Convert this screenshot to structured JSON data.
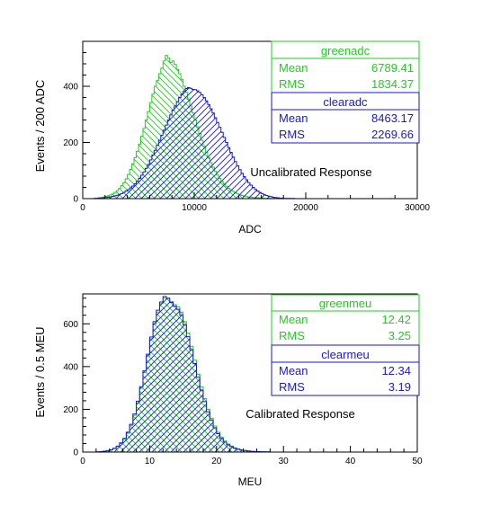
{
  "chart_data": [
    {
      "type": "histogram",
      "xlabel": "ADC",
      "ylabel": "Events / 200 ADC",
      "annotation": "Uncalibrated Response",
      "xlim": [
        0,
        30000
      ],
      "ylim": [
        0,
        560
      ],
      "x_ticks": [
        0,
        10000,
        20000,
        30000
      ],
      "y_ticks": [
        0,
        200,
        400
      ],
      "grid": false,
      "bin_width": 200,
      "series": [
        {
          "name": "greenadc",
          "color": "#22cc22",
          "hatch": "diagonal-down",
          "x_start": 1000,
          "values": [
            1,
            2,
            3,
            4,
            6,
            8,
            10,
            13,
            17,
            22,
            28,
            36,
            46,
            57,
            70,
            86,
            104,
            124,
            146,
            169,
            194,
            222,
            250,
            280,
            310,
            342,
            372,
            400,
            420,
            445,
            465,
            490,
            510,
            500,
            485,
            490,
            478,
            460,
            445,
            425,
            400,
            378,
            355,
            330,
            305,
            280,
            256,
            232,
            208,
            186,
            165,
            146,
            128,
            112,
            97,
            84,
            72,
            61,
            52,
            44,
            37,
            31,
            26,
            21,
            17,
            14,
            11,
            9,
            7,
            6,
            5,
            4,
            3,
            3,
            2,
            2,
            1,
            1,
            1,
            1
          ],
          "stats": {
            "Mean": "6789.41",
            "RMS": "1834.37"
          }
        },
        {
          "name": "clearadc",
          "color": "#1a1acc",
          "hatch": "diagonal-up",
          "x_start": 1000,
          "values": [
            1,
            1,
            2,
            2,
            3,
            4,
            5,
            6,
            8,
            10,
            12,
            15,
            18,
            22,
            27,
            32,
            38,
            45,
            53,
            62,
            72,
            83,
            95,
            108,
            122,
            138,
            155,
            172,
            190,
            208,
            226,
            244,
            262,
            280,
            298,
            315,
            330,
            345,
            360,
            372,
            383,
            392,
            395,
            393,
            389,
            388,
            384,
            378,
            370,
            360,
            348,
            335,
            320,
            305,
            288,
            271,
            254,
            236,
            218,
            200,
            182,
            165,
            148,
            132,
            117,
            103,
            90,
            78,
            67,
            57,
            48,
            40,
            33,
            27,
            22,
            18,
            14,
            11,
            9,
            7,
            5,
            4,
            3,
            2,
            2,
            1,
            1,
            1,
            1,
            1
          ],
          "stats": {
            "Mean": "8463.17",
            "RMS": "2269.66"
          }
        }
      ]
    },
    {
      "type": "histogram",
      "xlabel": "MEU",
      "ylabel": "Events / 0.5 MEU",
      "annotation": "Calibrated Response",
      "xlim": [
        0,
        50
      ],
      "ylim": [
        0,
        740
      ],
      "x_ticks": [
        0,
        10,
        20,
        30,
        40,
        50
      ],
      "y_ticks": [
        0,
        200,
        400,
        600
      ],
      "grid": false,
      "bin_width": 0.5,
      "series": [
        {
          "name": "greenmeu",
          "color": "#22cc22",
          "hatch": "diagonal-down",
          "x_start": 2,
          "values": [
            1,
            2,
            4,
            6,
            10,
            16,
            26,
            40,
            60,
            88,
            125,
            172,
            230,
            298,
            372,
            450,
            530,
            600,
            655,
            695,
            720,
            718,
            705,
            690,
            680,
            655,
            610,
            556,
            495,
            430,
            365,
            305,
            250,
            200,
            158,
            122,
            93,
            70,
            52,
            38,
            28,
            20,
            15,
            11,
            8,
            6,
            4,
            3,
            2,
            2,
            1,
            1
          ],
          "stats": {
            "Mean": "12.42",
            "RMS": "3.25"
          }
        },
        {
          "name": "clearmeu",
          "color": "#1a1acc",
          "hatch": "diagonal-up",
          "x_start": 2,
          "values": [
            1,
            2,
            4,
            7,
            11,
            18,
            28,
            43,
            64,
            93,
            130,
            178,
            238,
            306,
            380,
            458,
            538,
            610,
            664,
            702,
            728,
            720,
            700,
            682,
            668,
            640,
            595,
            540,
            478,
            414,
            350,
            290,
            236,
            188,
            148,
            114,
            86,
            64,
            47,
            34,
            25,
            18,
            13,
            9,
            7,
            5,
            3,
            2,
            2,
            1,
            1,
            1
          ],
          "stats": {
            "Mean": "12.34",
            "RMS": "3.19"
          }
        }
      ]
    }
  ]
}
